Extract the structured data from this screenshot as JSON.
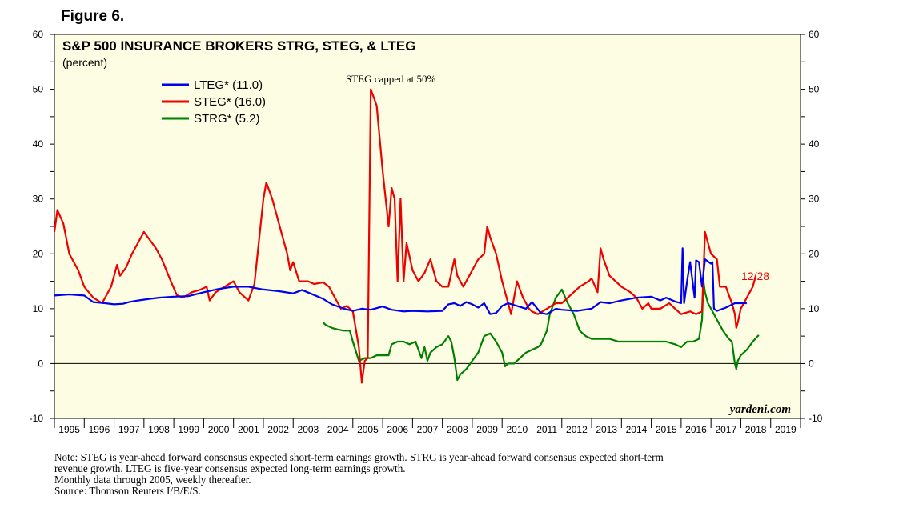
{
  "figure_label": "Figure 6.",
  "chart_data": {
    "type": "line",
    "title": "S&P 500 INSURANCE BROKERS STRG, STEG, & LTEG",
    "subtitle": "(percent)",
    "ylim": [
      -10,
      60
    ],
    "yticks": [
      -10,
      0,
      10,
      20,
      30,
      40,
      50,
      60
    ],
    "xlim": [
      1995,
      2020
    ],
    "xtick_labels": [
      "1995",
      "1996",
      "1997",
      "1998",
      "1999",
      "2000",
      "2001",
      "2002",
      "2003",
      "2004",
      "2005",
      "2006",
      "2007",
      "2008",
      "2009",
      "2010",
      "2011",
      "2012",
      "2013",
      "2014",
      "2015",
      "2016",
      "2017",
      "2018",
      "2019"
    ],
    "grid": false,
    "legend_position": "top-left",
    "annotations": {
      "steg_cap": "STEG capped at 50%",
      "last_date": "12/28",
      "source_mark": "yardeni.com"
    },
    "series": [
      {
        "name": "LTEG* (11.0)",
        "color": "#0000ee",
        "points": [
          [
            1995.0,
            12.4
          ],
          [
            1995.5,
            12.6
          ],
          [
            1996.0,
            12.4
          ],
          [
            1996.3,
            11.2
          ],
          [
            1996.7,
            11.0
          ],
          [
            1997.0,
            10.8
          ],
          [
            1997.3,
            10.9
          ],
          [
            1997.5,
            11.2
          ],
          [
            1997.8,
            11.5
          ],
          [
            1998.2,
            11.8
          ],
          [
            1998.5,
            12.0
          ],
          [
            1999.0,
            12.2
          ],
          [
            1999.5,
            12.3
          ],
          [
            2000.0,
            13.0
          ],
          [
            2000.5,
            13.6
          ],
          [
            2001.0,
            14.0
          ],
          [
            2001.5,
            14.0
          ],
          [
            2002.0,
            13.5
          ],
          [
            2002.5,
            13.2
          ],
          [
            2003.0,
            12.8
          ],
          [
            2003.3,
            13.4
          ],
          [
            2003.7,
            12.5
          ],
          [
            2004.0,
            11.8
          ],
          [
            2004.3,
            10.8
          ],
          [
            2004.7,
            10.0
          ],
          [
            2005.0,
            9.6
          ],
          [
            2005.3,
            10.0
          ],
          [
            2005.6,
            9.8
          ],
          [
            2006.0,
            10.4
          ],
          [
            2006.3,
            9.8
          ],
          [
            2006.7,
            9.5
          ],
          [
            2007.0,
            9.6
          ],
          [
            2007.5,
            9.5
          ],
          [
            2008.0,
            9.6
          ],
          [
            2008.2,
            10.8
          ],
          [
            2008.4,
            11.0
          ],
          [
            2008.6,
            10.5
          ],
          [
            2008.8,
            11.2
          ],
          [
            2009.0,
            10.8
          ],
          [
            2009.2,
            10.2
          ],
          [
            2009.4,
            11.0
          ],
          [
            2009.6,
            9.0
          ],
          [
            2009.8,
            9.2
          ],
          [
            2010.0,
            10.5
          ],
          [
            2010.2,
            11.0
          ],
          [
            2010.5,
            10.5
          ],
          [
            2010.8,
            10.0
          ],
          [
            2011.0,
            11.2
          ],
          [
            2011.3,
            9.2
          ],
          [
            2011.5,
            9.0
          ],
          [
            2011.8,
            10.0
          ],
          [
            2012.0,
            9.8
          ],
          [
            2012.5,
            9.6
          ],
          [
            2013.0,
            10.0
          ],
          [
            2013.3,
            11.2
          ],
          [
            2013.6,
            11.0
          ],
          [
            2014.0,
            11.5
          ],
          [
            2014.5,
            12.0
          ],
          [
            2015.0,
            12.2
          ],
          [
            2015.3,
            11.5
          ],
          [
            2015.5,
            12.0
          ],
          [
            2015.8,
            11.3
          ],
          [
            2016.0,
            11.0
          ],
          [
            2016.05,
            21.0
          ],
          [
            2016.1,
            11.0
          ],
          [
            2016.2,
            15.0
          ],
          [
            2016.3,
            18.5
          ],
          [
            2016.45,
            12.0
          ],
          [
            2016.5,
            18.8
          ],
          [
            2016.6,
            18.5
          ],
          [
            2016.7,
            14.0
          ],
          [
            2016.8,
            19.0
          ],
          [
            2017.0,
            18.2
          ],
          [
            2017.05,
            18.5
          ],
          [
            2017.1,
            10.0
          ],
          [
            2017.2,
            9.6
          ],
          [
            2017.5,
            10.2
          ],
          [
            2017.8,
            11.0
          ],
          [
            2018.0,
            11.0
          ],
          [
            2018.2,
            11.0
          ]
        ]
      },
      {
        "name": "STEG* (16.0)",
        "color": "#ee0000",
        "points": [
          [
            1995.0,
            24.0
          ],
          [
            1995.1,
            28.0
          ],
          [
            1995.3,
            25.5
          ],
          [
            1995.5,
            20.0
          ],
          [
            1995.8,
            17.0
          ],
          [
            1996.0,
            14.0
          ],
          [
            1996.3,
            12.0
          ],
          [
            1996.6,
            11.0
          ],
          [
            1996.9,
            14.0
          ],
          [
            1997.1,
            18.0
          ],
          [
            1997.2,
            16.0
          ],
          [
            1997.4,
            17.5
          ],
          [
            1997.6,
            20.0
          ],
          [
            1997.8,
            22.0
          ],
          [
            1998.0,
            24.0
          ],
          [
            1998.2,
            22.5
          ],
          [
            1998.4,
            21.0
          ],
          [
            1998.6,
            19.0
          ],
          [
            1998.9,
            15.0
          ],
          [
            1999.1,
            12.5
          ],
          [
            1999.3,
            12.0
          ],
          [
            1999.6,
            13.0
          ],
          [
            1999.9,
            13.5
          ],
          [
            2000.1,
            14.0
          ],
          [
            2000.2,
            11.5
          ],
          [
            2000.4,
            13.0
          ],
          [
            2000.7,
            14.0
          ],
          [
            2001.0,
            15.0
          ],
          [
            2001.2,
            13.0
          ],
          [
            2001.5,
            11.5
          ],
          [
            2001.7,
            14.5
          ],
          [
            2002.0,
            30.0
          ],
          [
            2002.1,
            33.0
          ],
          [
            2002.3,
            30.0
          ],
          [
            2002.6,
            24.0
          ],
          [
            2002.8,
            20.0
          ],
          [
            2002.9,
            17.0
          ],
          [
            2003.0,
            18.5
          ],
          [
            2003.2,
            15.0
          ],
          [
            2003.5,
            15.0
          ],
          [
            2003.7,
            14.5
          ],
          [
            2004.0,
            14.8
          ],
          [
            2004.2,
            14.0
          ],
          [
            2004.4,
            12.0
          ],
          [
            2004.6,
            10.0
          ],
          [
            2004.8,
            10.5
          ],
          [
            2005.0,
            9.5
          ],
          [
            2005.2,
            3.0
          ],
          [
            2005.3,
            -3.5
          ],
          [
            2005.4,
            0.5
          ],
          [
            2005.5,
            1.0
          ],
          [
            2005.6,
            50.0
          ],
          [
            2005.8,
            47.0
          ],
          [
            2006.0,
            35.0
          ],
          [
            2006.2,
            25.0
          ],
          [
            2006.3,
            32.0
          ],
          [
            2006.4,
            30.0
          ],
          [
            2006.5,
            15.0
          ],
          [
            2006.6,
            30.0
          ],
          [
            2006.7,
            15.0
          ],
          [
            2006.8,
            22.0
          ],
          [
            2007.0,
            17.0
          ],
          [
            2007.2,
            15.0
          ],
          [
            2007.4,
            16.5
          ],
          [
            2007.6,
            19.0
          ],
          [
            2007.8,
            15.0
          ],
          [
            2008.0,
            14.0
          ],
          [
            2008.2,
            14.0
          ],
          [
            2008.4,
            19.0
          ],
          [
            2008.5,
            16.0
          ],
          [
            2008.7,
            14.0
          ],
          [
            2008.9,
            16.0
          ],
          [
            2009.0,
            17.0
          ],
          [
            2009.2,
            19.0
          ],
          [
            2009.4,
            20.0
          ],
          [
            2009.5,
            25.0
          ],
          [
            2009.6,
            23.0
          ],
          [
            2009.8,
            20.0
          ],
          [
            2010.0,
            15.0
          ],
          [
            2010.2,
            11.0
          ],
          [
            2010.3,
            9.0
          ],
          [
            2010.5,
            15.0
          ],
          [
            2010.7,
            12.0
          ],
          [
            2010.9,
            10.0
          ],
          [
            2011.0,
            9.5
          ],
          [
            2011.2,
            9.0
          ],
          [
            2011.5,
            10.0
          ],
          [
            2011.8,
            11.0
          ],
          [
            2012.0,
            11.0
          ],
          [
            2012.3,
            12.5
          ],
          [
            2012.6,
            14.0
          ],
          [
            2012.9,
            15.0
          ],
          [
            2013.0,
            15.5
          ],
          [
            2013.2,
            13.0
          ],
          [
            2013.3,
            21.0
          ],
          [
            2013.4,
            19.0
          ],
          [
            2013.6,
            16.0
          ],
          [
            2013.8,
            15.0
          ],
          [
            2014.0,
            14.0
          ],
          [
            2014.3,
            13.0
          ],
          [
            2014.5,
            12.0
          ],
          [
            2014.7,
            10.0
          ],
          [
            2014.9,
            11.0
          ],
          [
            2015.0,
            10.0
          ],
          [
            2015.3,
            10.0
          ],
          [
            2015.6,
            11.0
          ],
          [
            2015.8,
            10.0
          ],
          [
            2016.0,
            9.0
          ],
          [
            2016.3,
            9.5
          ],
          [
            2016.5,
            9.0
          ],
          [
            2016.7,
            9.5
          ],
          [
            2016.8,
            24.0
          ],
          [
            2016.9,
            22.0
          ],
          [
            2017.0,
            20.0
          ],
          [
            2017.2,
            19.0
          ],
          [
            2017.3,
            14.0
          ],
          [
            2017.5,
            14.0
          ],
          [
            2017.6,
            12.5
          ],
          [
            2017.7,
            11.0
          ],
          [
            2017.8,
            9.0
          ],
          [
            2017.85,
            6.5
          ],
          [
            2017.9,
            7.5
          ],
          [
            2018.0,
            10.0
          ],
          [
            2018.2,
            12.0
          ],
          [
            2018.4,
            14.0
          ],
          [
            2018.5,
            16.0
          ]
        ]
      },
      {
        "name": "STRG* (5.2)",
        "color": "#008000",
        "points": [
          [
            2004.0,
            7.5
          ],
          [
            2004.1,
            7.0
          ],
          [
            2004.3,
            6.5
          ],
          [
            2004.5,
            6.2
          ],
          [
            2004.7,
            6.0
          ],
          [
            2004.9,
            6.0
          ],
          [
            2005.0,
            4.0
          ],
          [
            2005.2,
            0.5
          ],
          [
            2005.4,
            1.0
          ],
          [
            2005.6,
            1.0
          ],
          [
            2005.8,
            1.5
          ],
          [
            2006.0,
            1.5
          ],
          [
            2006.2,
            1.5
          ],
          [
            2006.3,
            3.5
          ],
          [
            2006.5,
            4.0
          ],
          [
            2006.7,
            4.0
          ],
          [
            2006.9,
            3.5
          ],
          [
            2007.1,
            4.0
          ],
          [
            2007.3,
            1.0
          ],
          [
            2007.4,
            3.0
          ],
          [
            2007.5,
            0.5
          ],
          [
            2007.6,
            2.0
          ],
          [
            2007.8,
            3.0
          ],
          [
            2008.0,
            3.5
          ],
          [
            2008.2,
            5.0
          ],
          [
            2008.3,
            4.0
          ],
          [
            2008.4,
            1.0
          ],
          [
            2008.5,
            -3.0
          ],
          [
            2008.6,
            -2.0
          ],
          [
            2008.8,
            -1.0
          ],
          [
            2009.0,
            0.5
          ],
          [
            2009.2,
            2.0
          ],
          [
            2009.4,
            5.0
          ],
          [
            2009.6,
            5.5
          ],
          [
            2009.8,
            4.0
          ],
          [
            2010.0,
            2.0
          ],
          [
            2010.1,
            -0.5
          ],
          [
            2010.2,
            0.0
          ],
          [
            2010.4,
            0.0
          ],
          [
            2010.6,
            1.0
          ],
          [
            2010.8,
            2.0
          ],
          [
            2011.0,
            2.5
          ],
          [
            2011.2,
            3.0
          ],
          [
            2011.3,
            3.5
          ],
          [
            2011.5,
            6.0
          ],
          [
            2011.6,
            9.0
          ],
          [
            2011.8,
            12.0
          ],
          [
            2012.0,
            13.5
          ],
          [
            2012.2,
            11.0
          ],
          [
            2012.4,
            9.0
          ],
          [
            2012.6,
            6.0
          ],
          [
            2012.8,
            5.0
          ],
          [
            2013.0,
            4.5
          ],
          [
            2013.3,
            4.5
          ],
          [
            2013.6,
            4.5
          ],
          [
            2013.9,
            4.0
          ],
          [
            2014.1,
            4.0
          ],
          [
            2014.3,
            4.0
          ],
          [
            2014.6,
            4.0
          ],
          [
            2014.9,
            4.0
          ],
          [
            2015.2,
            4.0
          ],
          [
            2015.5,
            4.0
          ],
          [
            2015.8,
            3.5
          ],
          [
            2016.0,
            3.0
          ],
          [
            2016.2,
            4.0
          ],
          [
            2016.4,
            4.0
          ],
          [
            2016.6,
            4.5
          ],
          [
            2016.7,
            8.0
          ],
          [
            2016.75,
            15.0
          ],
          [
            2016.8,
            13.0
          ],
          [
            2016.9,
            11.0
          ],
          [
            2017.0,
            10.0
          ],
          [
            2017.2,
            8.0
          ],
          [
            2017.4,
            6.0
          ],
          [
            2017.6,
            4.5
          ],
          [
            2017.7,
            4.0
          ],
          [
            2017.8,
            0.0
          ],
          [
            2017.85,
            -1.0
          ],
          [
            2017.9,
            0.5
          ],
          [
            2018.0,
            1.5
          ],
          [
            2018.2,
            2.5
          ],
          [
            2018.4,
            4.0
          ],
          [
            2018.6,
            5.2
          ]
        ]
      }
    ]
  },
  "notes": [
    "Note: STEG is year-ahead forward consensus expected short-term earnings growth. STRG is year-ahead forward consensus expected short-term",
    "revenue growth. LTEG is five-year consensus expected long-term earnings growth.",
    "Monthly data through 2005, weekly thereafter.",
    "Source: Thomson Reuters I/B/E/S."
  ]
}
